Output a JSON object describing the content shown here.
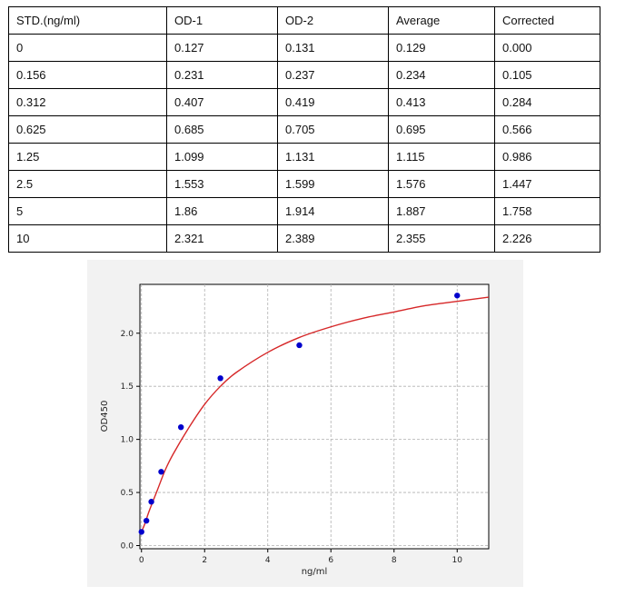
{
  "table": {
    "headers": [
      "STD.(ng/ml)",
      "OD-1",
      "OD-2",
      "Average",
      "Corrected"
    ],
    "rows": [
      [
        "0",
        "0.127",
        "0.131",
        "0.129",
        "0.000"
      ],
      [
        "0.156",
        "0.231",
        "0.237",
        "0.234",
        "0.105"
      ],
      [
        "0.312",
        "0.407",
        "0.419",
        "0.413",
        "0.284"
      ],
      [
        "0.625",
        "0.685",
        "0.705",
        "0.695",
        "0.566"
      ],
      [
        "1.25",
        "1.099",
        "1.131",
        "1.115",
        "0.986"
      ],
      [
        "2.5",
        "1.553",
        "1.599",
        "1.576",
        "1.447"
      ],
      [
        "5",
        "1.86",
        "1.914",
        "1.887",
        "1.758"
      ],
      [
        "10",
        "2.321",
        "2.389",
        "2.355",
        "2.226"
      ]
    ]
  },
  "chart_data": {
    "type": "scatter",
    "xlabel": "ng/ml",
    "ylabel": "OD450",
    "xlim": [
      -0.05,
      11.0
    ],
    "ylim": [
      -0.03,
      2.46
    ],
    "xticks": [
      0,
      2,
      4,
      6,
      8,
      10
    ],
    "yticks": [
      0.0,
      0.5,
      1.0,
      1.5,
      2.0
    ],
    "xtick_labels": [
      "0",
      "2",
      "4",
      "6",
      "8",
      "10"
    ],
    "ytick_labels": [
      "0.0",
      "0.5",
      "1.0",
      "1.5",
      "2.0"
    ],
    "grid": true,
    "series": [
      {
        "kind": "points",
        "color": "#0000cc",
        "x": [
          0,
          0.156,
          0.312,
          0.625,
          1.25,
          2.5,
          5,
          10
        ],
        "y": [
          0.129,
          0.234,
          0.413,
          0.695,
          1.115,
          1.576,
          1.887,
          2.355
        ]
      },
      {
        "kind": "fit-curve",
        "color": "#d62728",
        "x": [
          0,
          0.1,
          0.25,
          0.5,
          0.75,
          1,
          1.5,
          2,
          2.5,
          3,
          4,
          5,
          6,
          7,
          8,
          9,
          10,
          11
        ],
        "y": [
          0.13,
          0.2,
          0.33,
          0.52,
          0.71,
          0.86,
          1.11,
          1.33,
          1.5,
          1.63,
          1.82,
          1.96,
          2.06,
          2.14,
          2.2,
          2.26,
          2.3,
          2.34
        ]
      }
    ]
  }
}
